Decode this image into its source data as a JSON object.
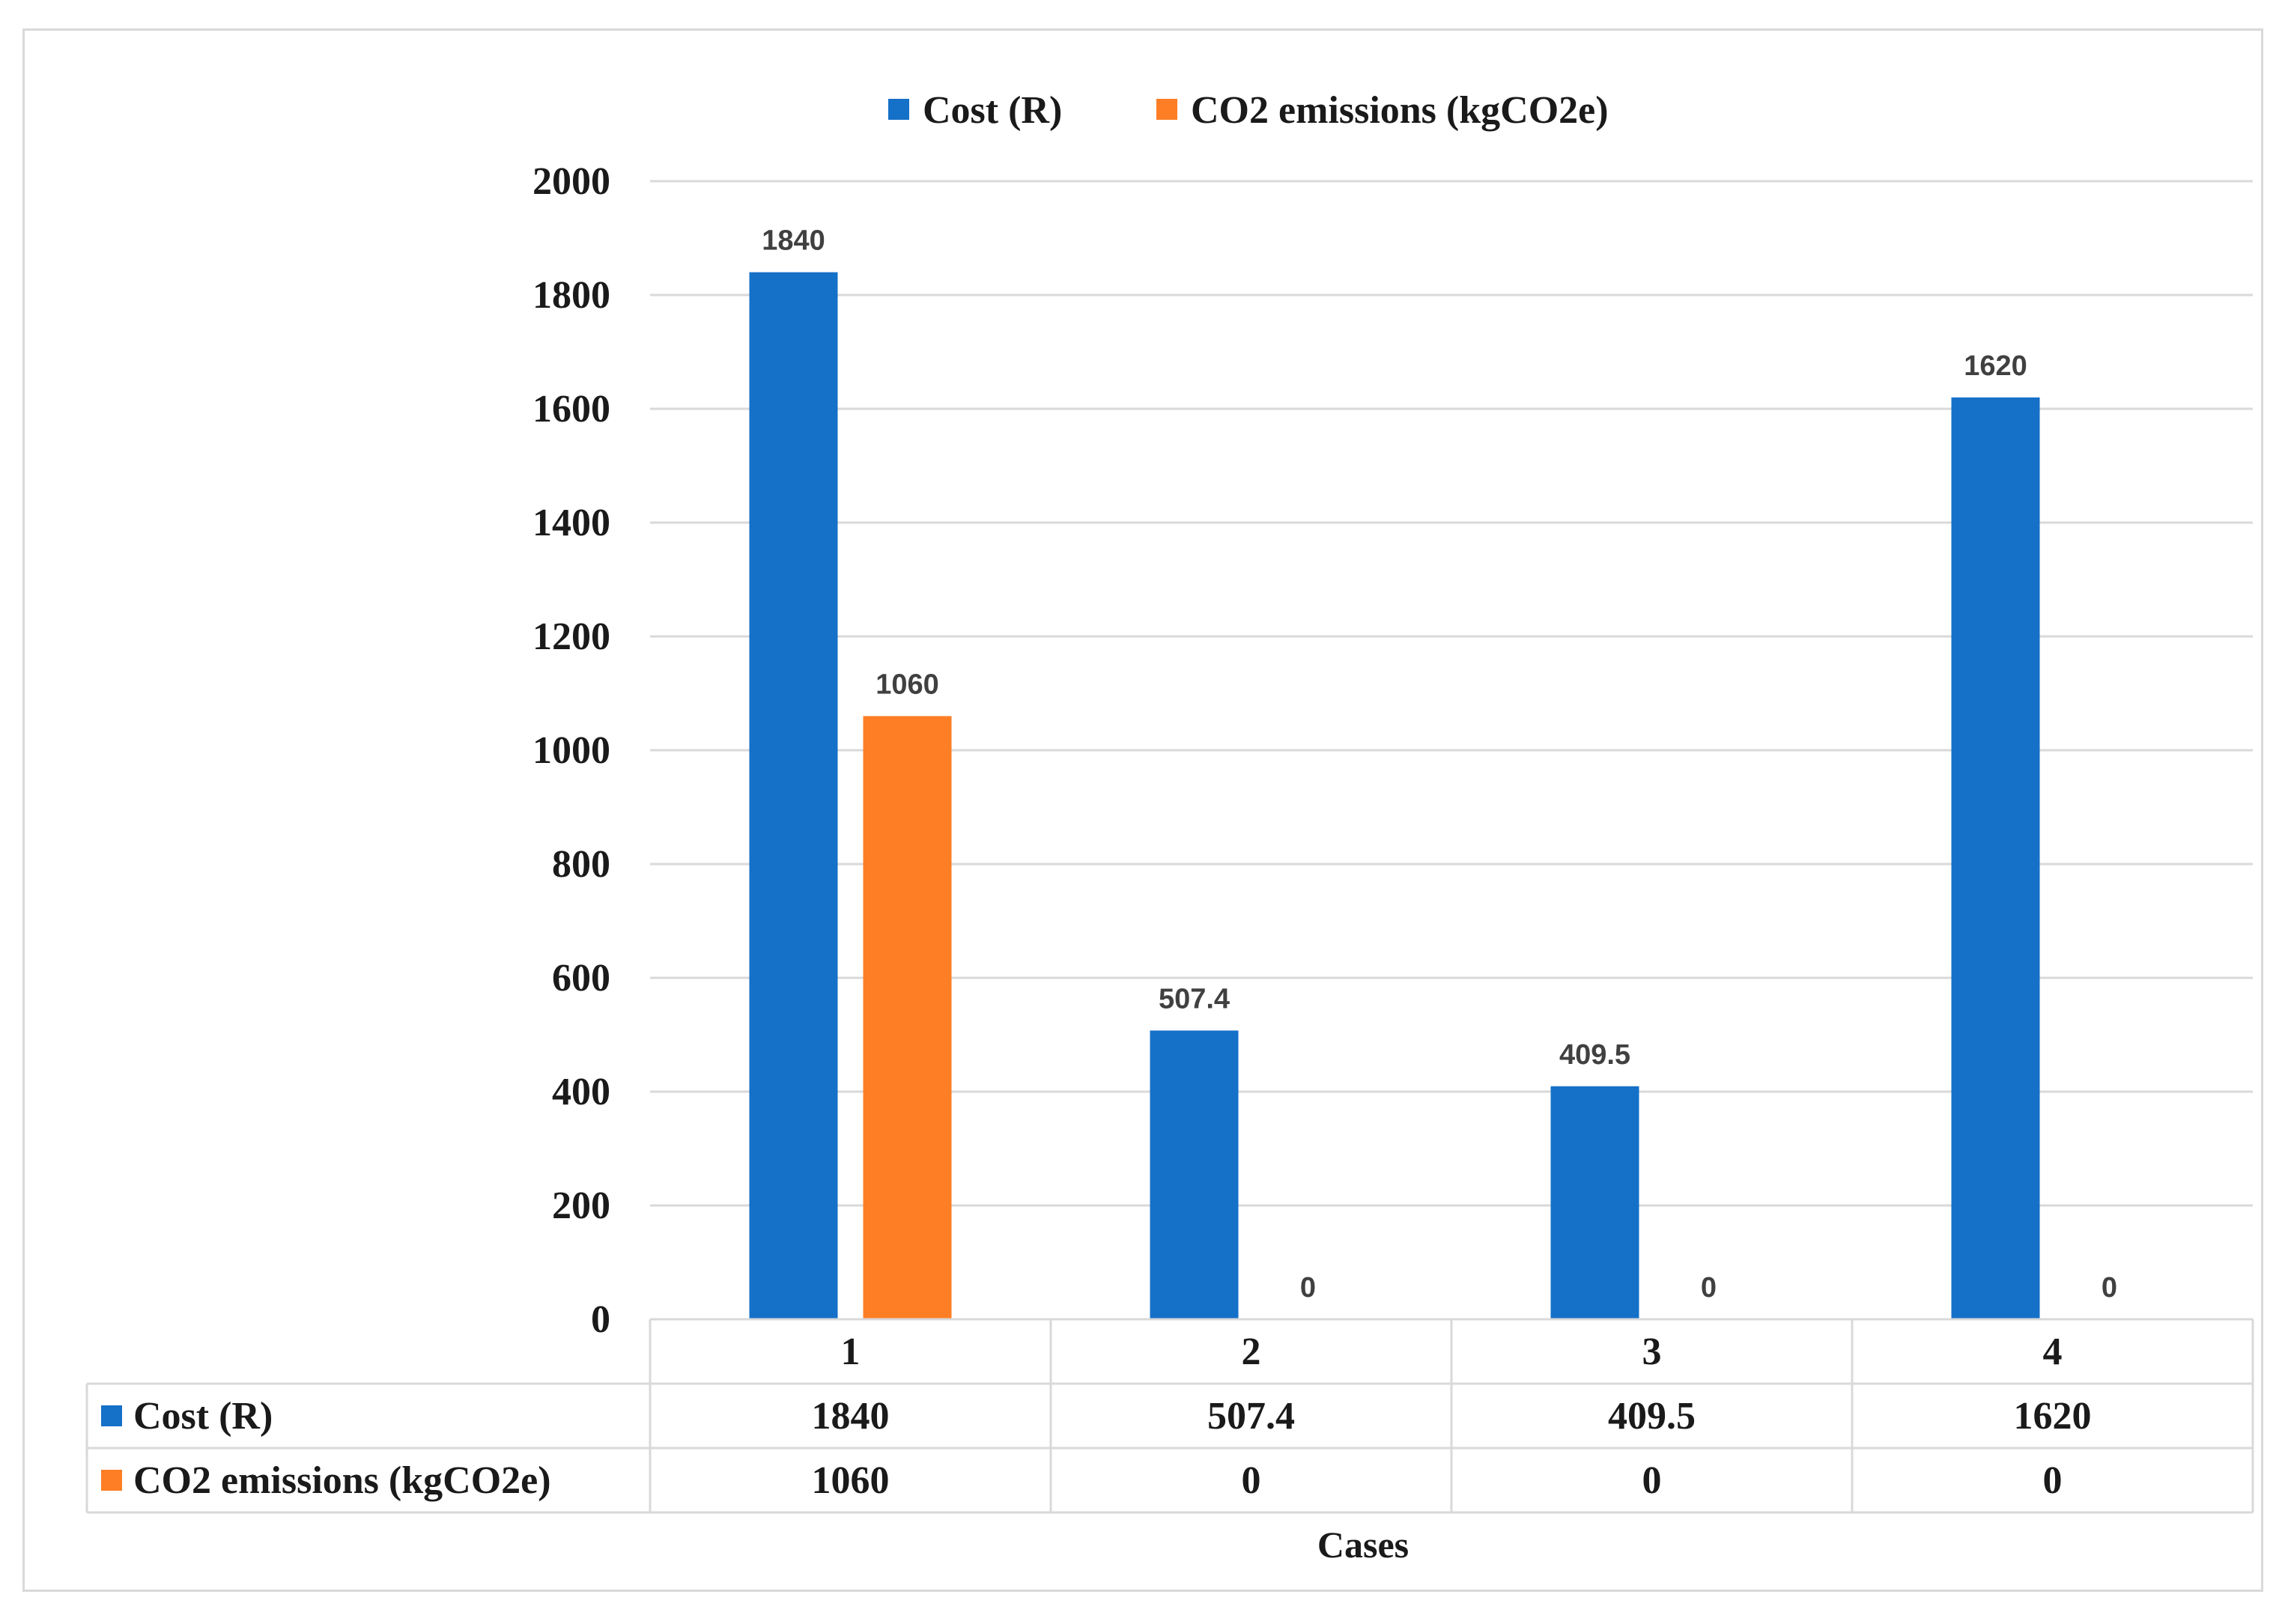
{
  "chart_data": {
    "type": "bar",
    "title": "",
    "xlabel": "Cases",
    "ylabel": "",
    "ylim": [
      0,
      2000
    ],
    "ytick_step": 200,
    "grid": true,
    "legend_position": "top-center",
    "categories": [
      "1",
      "2",
      "3",
      "4"
    ],
    "series": [
      {
        "name": "Cost (R)",
        "color": "#1570c8",
        "values": [
          1840,
          507.4,
          409.5,
          1620
        ]
      },
      {
        "name": "CO2 emissions (kgCO2e)",
        "color": "#fd7e24",
        "values": [
          1060,
          0,
          0,
          0
        ]
      }
    ],
    "data_table": true
  }
}
